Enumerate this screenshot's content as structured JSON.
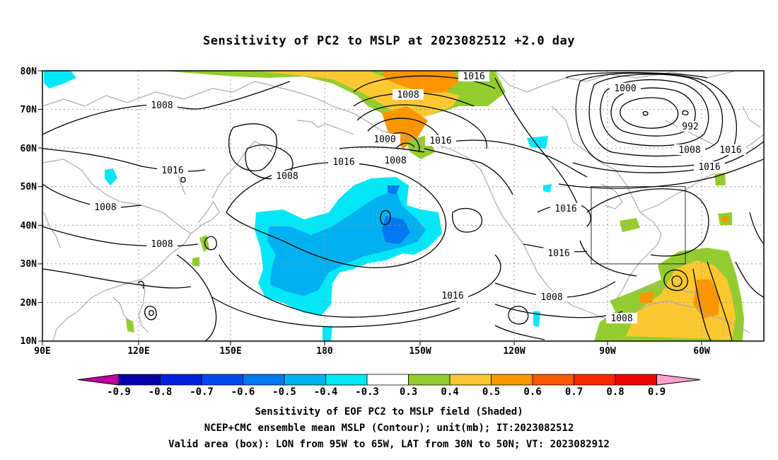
{
  "title": "Sensitivity of PC2 to MSLP at 2023082512 +2.0 day",
  "lat_labels": [
    "80N",
    "70N",
    "60N",
    "50N",
    "40N",
    "30N",
    "20N",
    "10N"
  ],
  "lon_labels": [
    "90E",
    "120E",
    "150E",
    "180",
    "150W",
    "120W",
    "90W",
    "60W"
  ],
  "contour_labels": [
    {
      "text": "1016"
    },
    {
      "text": "1008"
    },
    {
      "text": "1008"
    },
    {
      "text": "1000"
    },
    {
      "text": "1016"
    },
    {
      "text": "1008"
    },
    {
      "text": "1000"
    },
    {
      "text": "992"
    },
    {
      "text": "1008"
    },
    {
      "text": "1016"
    },
    {
      "text": "1016"
    },
    {
      "text": "1016"
    },
    {
      "text": "1016"
    },
    {
      "text": "1008"
    },
    {
      "text": "1016"
    },
    {
      "text": "1008"
    },
    {
      "text": "1008"
    },
    {
      "text": "1016"
    },
    {
      "text": "1016"
    },
    {
      "text": "1008"
    },
    {
      "text": "1008"
    }
  ],
  "colorbar": {
    "labels": [
      "-0.9",
      "-0.8",
      "-0.7",
      "-0.6",
      "-0.5",
      "-0.4",
      "-0.3",
      "0.3",
      "0.4",
      "0.5",
      "0.6",
      "0.7",
      "0.8",
      "0.9"
    ],
    "colors": [
      "#c000a0",
      "#0000a8",
      "#0020e0",
      "#0048f0",
      "#0078f0",
      "#00b0f0",
      "#00e8f8",
      "#ffffff",
      "#94cc30",
      "#fcc832",
      "#fc9600",
      "#fc5a00",
      "#fc2800",
      "#f00000",
      "#ffa0d0"
    ]
  },
  "valid_box": {
    "lon_from": "95W",
    "lon_to": "65W",
    "lat_from": "30N",
    "lat_to": "50N"
  },
  "caption": {
    "line1": "Sensitivity of EOF PC2 to MSLP field (Shaded)",
    "line2": "NCEP+CMC ensemble mean MSLP (Contour); unit(mb); IT:2023082512",
    "line3": "Valid area (box): LON from 95W to 65W, LAT from 30N to 50N; VT: 2023082912"
  }
}
